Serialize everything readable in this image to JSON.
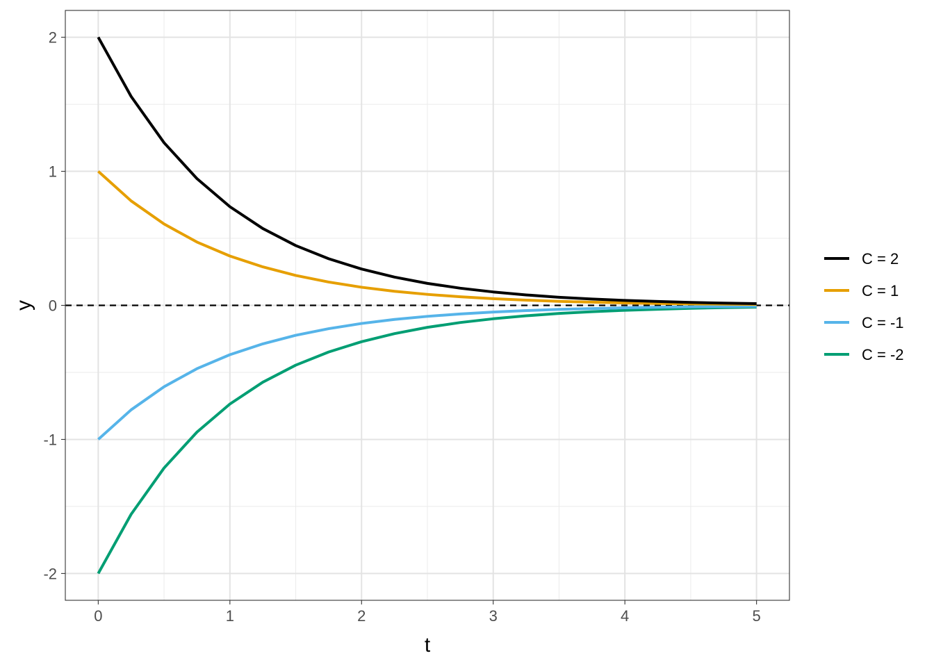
{
  "chart_data": {
    "type": "line",
    "title": "",
    "xlabel": "t",
    "ylabel": "y",
    "xlim": [
      -0.25,
      5.25
    ],
    "ylim": [
      -2.2,
      2.2
    ],
    "x_ticks": [
      "0",
      "1",
      "2",
      "3",
      "4",
      "5"
    ],
    "y_ticks": [
      "-2",
      "-1",
      "0",
      "1",
      "2"
    ],
    "x_tick_values": [
      0,
      1,
      2,
      3,
      4,
      5
    ],
    "y_tick_values": [
      -2,
      -1,
      0,
      1,
      2
    ],
    "grid": true,
    "legend_position": "right",
    "reference_line": {
      "y": 0,
      "style": "dashed",
      "color": "#000000"
    },
    "x": [
      0,
      0.25,
      0.5,
      0.75,
      1,
      1.25,
      1.5,
      1.75,
      2,
      2.25,
      2.5,
      2.75,
      3,
      3.25,
      3.5,
      3.75,
      4,
      4.25,
      4.5,
      4.75,
      5
    ],
    "series": [
      {
        "name": "C = 2",
        "color": "#000000",
        "values": [
          2.0,
          1.558,
          1.213,
          0.945,
          0.736,
          0.573,
          0.446,
          0.348,
          0.271,
          0.211,
          0.164,
          0.128,
          0.1,
          0.078,
          0.06,
          0.047,
          0.037,
          0.029,
          0.022,
          0.017,
          0.013
        ]
      },
      {
        "name": "C = 1",
        "color": "#E69F00",
        "values": [
          1.0,
          0.779,
          0.607,
          0.472,
          0.368,
          0.287,
          0.223,
          0.174,
          0.135,
          0.105,
          0.082,
          0.064,
          0.05,
          0.039,
          0.03,
          0.024,
          0.018,
          0.014,
          0.011,
          0.009,
          0.007
        ]
      },
      {
        "name": "C = -1",
        "color": "#56B4E9",
        "values": [
          -1.0,
          -0.779,
          -0.607,
          -0.472,
          -0.368,
          -0.287,
          -0.223,
          -0.174,
          -0.135,
          -0.105,
          -0.082,
          -0.064,
          -0.05,
          -0.039,
          -0.03,
          -0.024,
          -0.018,
          -0.014,
          -0.011,
          -0.009,
          -0.007
        ]
      },
      {
        "name": "C = -2",
        "color": "#009E73",
        "values": [
          -2.0,
          -1.558,
          -1.213,
          -0.945,
          -0.736,
          -0.573,
          -0.446,
          -0.348,
          -0.271,
          -0.211,
          -0.164,
          -0.128,
          -0.1,
          -0.078,
          -0.06,
          -0.047,
          -0.037,
          -0.029,
          -0.022,
          -0.017,
          -0.013
        ]
      }
    ]
  }
}
